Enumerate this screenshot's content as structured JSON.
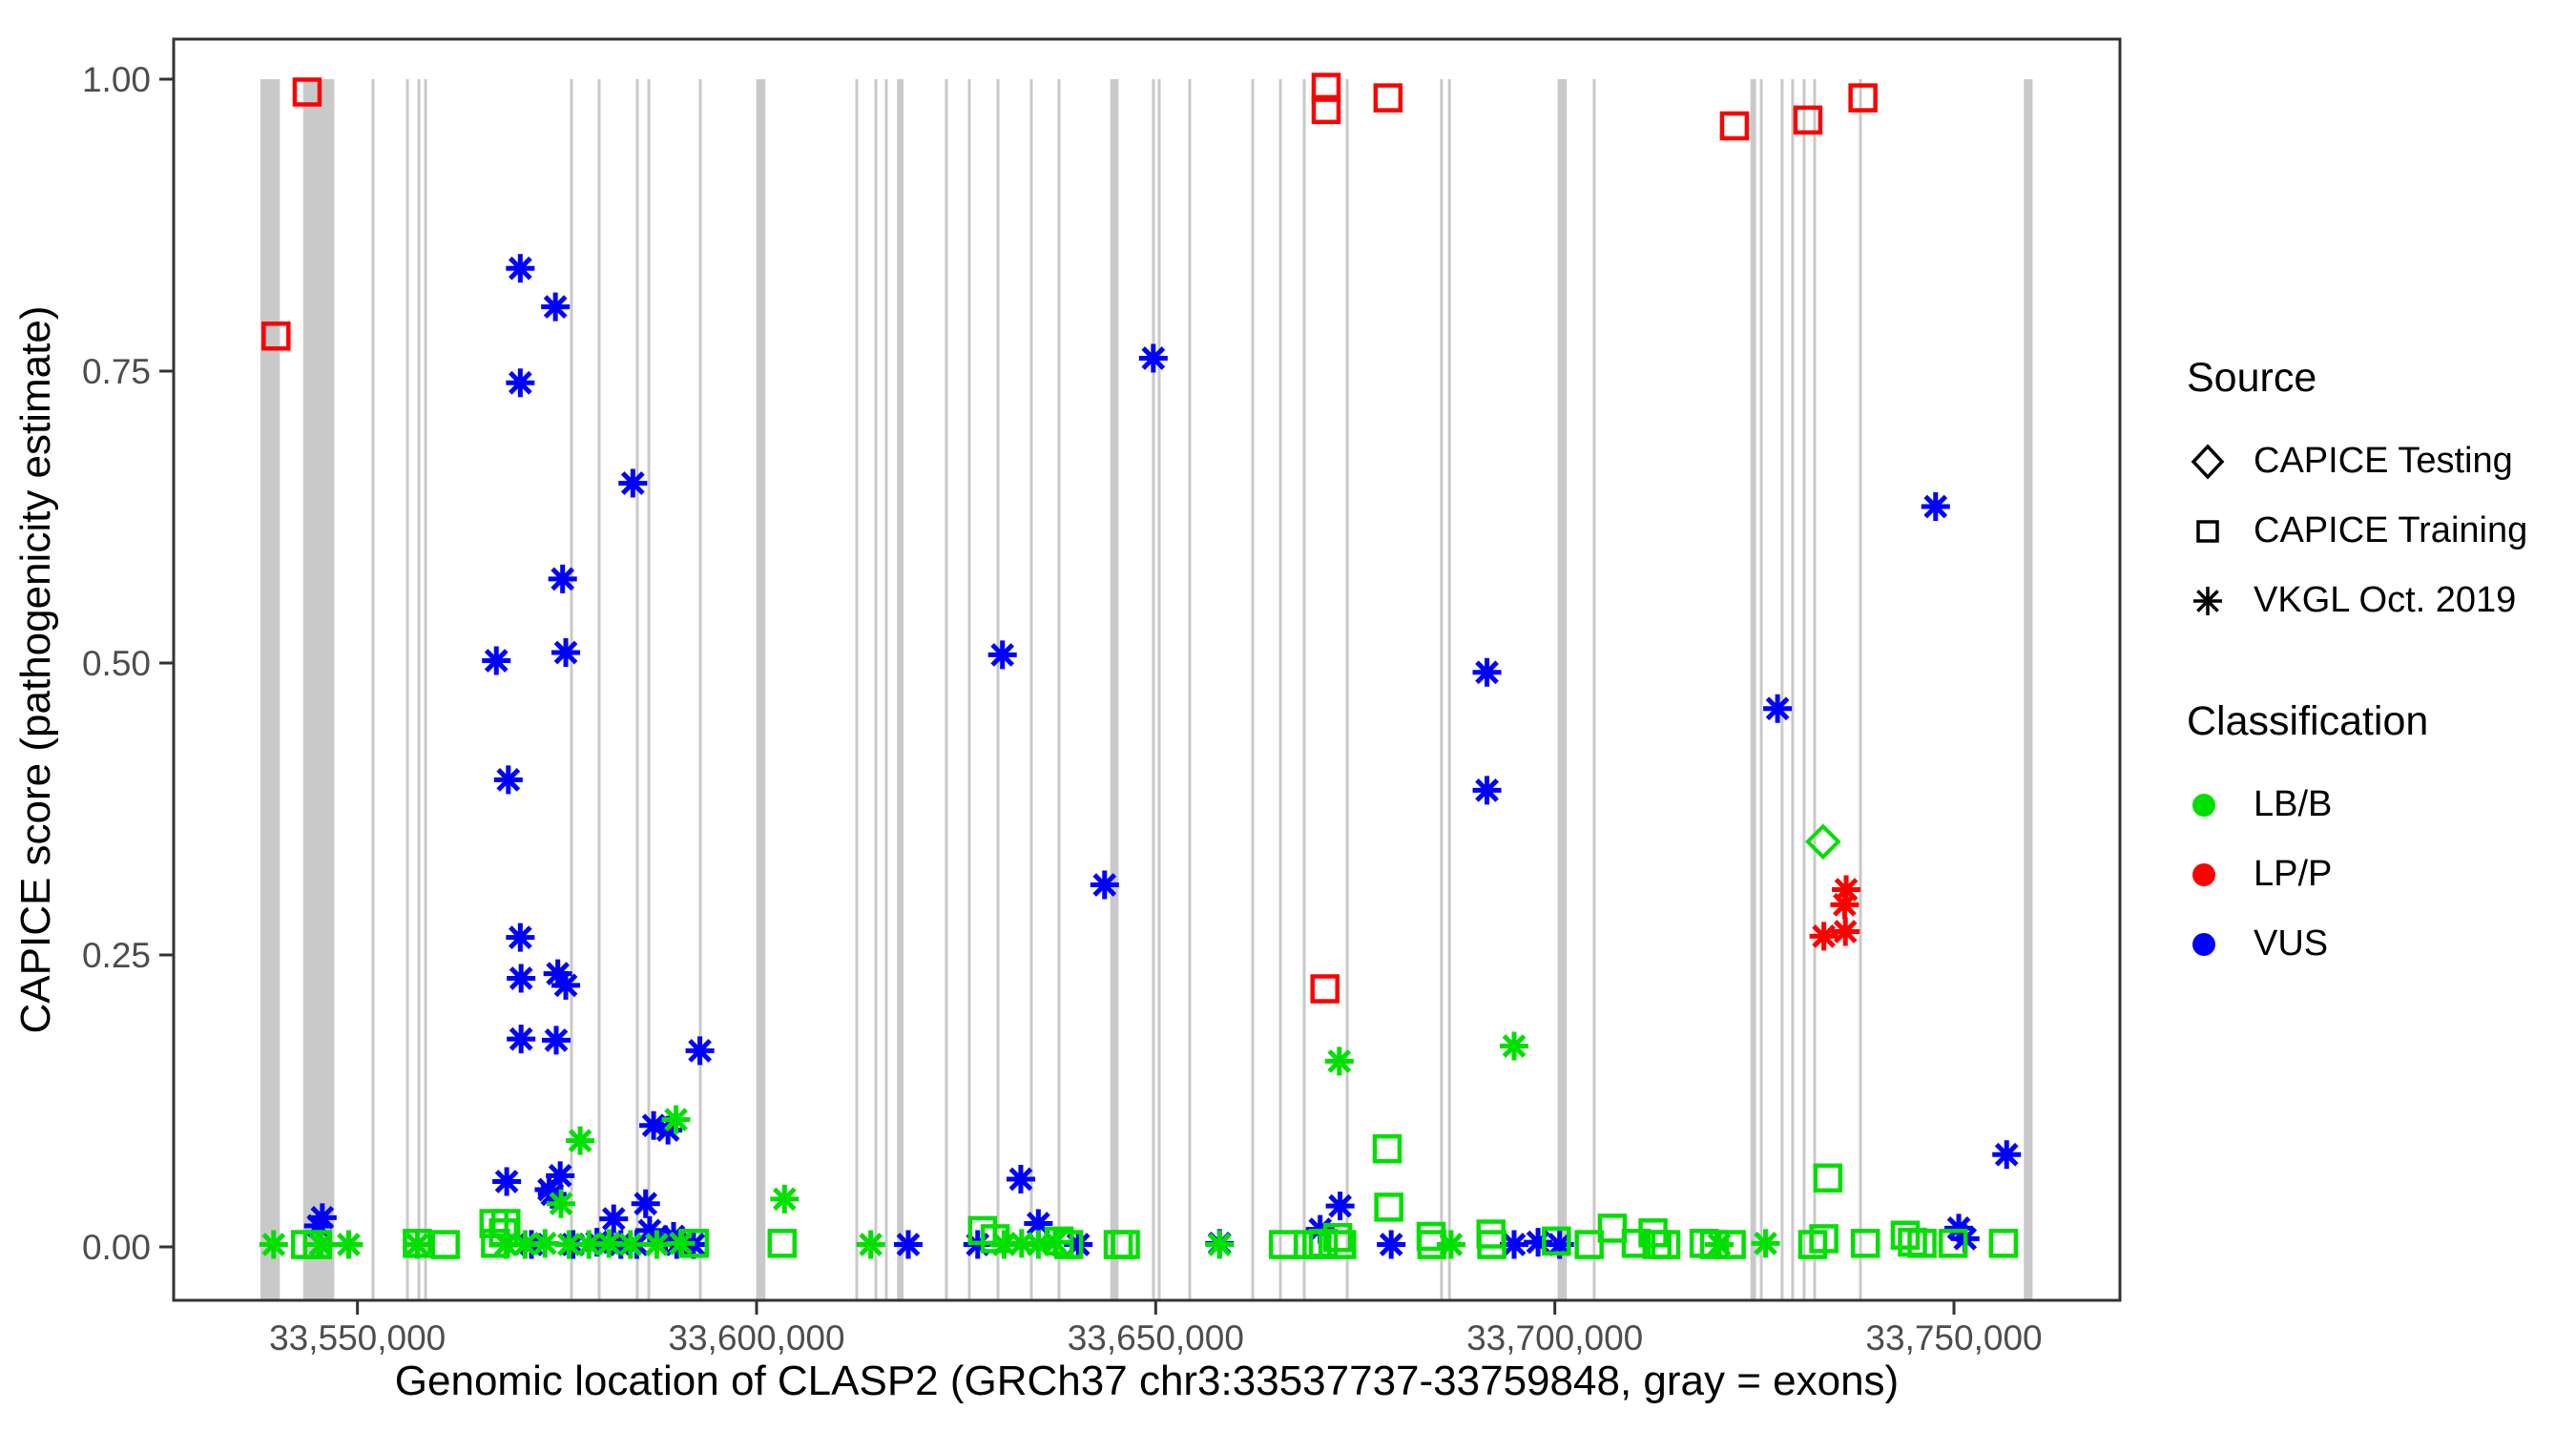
{
  "figure": {
    "x_title": "Genomic location of CLASP2 (GRCh37 chr3:33537737-33759848, gray = exons)",
    "y_title": "CAPICE score (pathogenicity estimate)"
  },
  "legend": {
    "source": {
      "title": "Source",
      "items": [
        {
          "symbol": "diamond",
          "label": "CAPICE Testing"
        },
        {
          "symbol": "square",
          "label": "CAPICE Training"
        },
        {
          "symbol": "asterisk",
          "label": "VKGL Oct. 2019"
        }
      ]
    },
    "classification": {
      "title": "Classification",
      "items": [
        {
          "color": "#00e000",
          "label": "LB/B"
        },
        {
          "color": "#ff0000",
          "label": "LP/P"
        },
        {
          "color": "#0000ff",
          "label": "VUS"
        }
      ]
    }
  },
  "chart_data": {
    "type": "scatter",
    "title": "",
    "xlabel": "Genomic location of CLASP2 (GRCh37 chr3:33537737-33759848, gray = exons)",
    "ylabel": "CAPICE score (pathogenicity estimate)",
    "xlim": [
      33526900,
      33770800
    ],
    "ylim": [
      -0.046,
      1.035
    ],
    "x_ticks": [
      {
        "value": 33550000,
        "label": "33,550,000"
      },
      {
        "value": 33600000,
        "label": "33,600,000"
      },
      {
        "value": 33650000,
        "label": "33,650,000"
      },
      {
        "value": 33700000,
        "label": "33,700,000"
      },
      {
        "value": 33750000,
        "label": "33,750,000"
      }
    ],
    "y_ticks": [
      {
        "value": 0.0,
        "label": "0.00"
      },
      {
        "value": 0.25,
        "label": "0.25"
      },
      {
        "value": 0.5,
        "label": "0.50"
      },
      {
        "value": 0.75,
        "label": "0.75"
      },
      {
        "value": 1.0,
        "label": "1.00"
      }
    ],
    "grid": false,
    "legend_position": "right",
    "colors": {
      "LB/B": "#00e000",
      "LP/P": "#ff0000",
      "VUS": "#0000ff",
      "exon": "#c9c9c9",
      "axis": "#333333",
      "tick_text": "#4d4d4d"
    },
    "exons_wide": [
      [
        33537850,
        33540280
      ],
      [
        33543200,
        33547100
      ],
      [
        33599950,
        33601100
      ],
      [
        33617600,
        33618400
      ],
      [
        33644300,
        33645350
      ],
      [
        33700350,
        33701500
      ],
      [
        33724500,
        33725200
      ],
      [
        33758750,
        33759848
      ]
    ],
    "exons_thin": [
      33551950,
      33556260,
      33557700,
      33558530,
      33576810,
      33580280,
      33585060,
      33586500,
      33592950,
      33612550,
      33614940,
      33616250,
      33623780,
      33626650,
      33630240,
      33634420,
      33637890,
      33649720,
      33650440,
      33654260,
      33662150,
      33665620,
      33668610,
      33673990,
      33685800,
      33686800,
      33704930,
      33725860,
      33728470,
      33729790,
      33731230,
      33732550,
      33738290
    ],
    "series": [
      {
        "name": "VUS / VKGL Oct. 2019",
        "classification": "VUS",
        "source": "vkgl",
        "points": [
          [
            33570400,
            0.838
          ],
          [
            33574800,
            0.805
          ],
          [
            33570400,
            0.74
          ],
          [
            33584500,
            0.654
          ],
          [
            33575700,
            0.572
          ],
          [
            33576100,
            0.509
          ],
          [
            33567400,
            0.502
          ],
          [
            33568900,
            0.4
          ],
          [
            33570400,
            0.265
          ],
          [
            33570500,
            0.23
          ],
          [
            33575100,
            0.234
          ],
          [
            33576100,
            0.224
          ],
          [
            33570500,
            0.178
          ],
          [
            33574900,
            0.177
          ],
          [
            33592900,
            0.168
          ],
          [
            33587100,
            0.104
          ],
          [
            33588900,
            0.1
          ],
          [
            33568700,
            0.056
          ],
          [
            33575400,
            0.061
          ],
          [
            33574000,
            0.049
          ],
          [
            33574400,
            0.045
          ],
          [
            33582100,
            0.024
          ],
          [
            33586100,
            0.037
          ],
          [
            33586600,
            0.014
          ],
          [
            33588600,
            0.006
          ],
          [
            33589600,
            0.009
          ],
          [
            33545600,
            0.025
          ],
          [
            33545100,
            0.018
          ],
          [
            33545400,
            0.002
          ],
          [
            33571800,
            0.002
          ],
          [
            33577000,
            0.002
          ],
          [
            33580000,
            0.004
          ],
          [
            33583000,
            0.002
          ],
          [
            33585000,
            0.002
          ],
          [
            33590000,
            0.002
          ],
          [
            33592100,
            0.002
          ],
          [
            33649700,
            0.761
          ],
          [
            33630800,
            0.507
          ],
          [
            33643600,
            0.31
          ],
          [
            33633100,
            0.058
          ],
          [
            33635300,
            0.02
          ],
          [
            33619000,
            0.002
          ],
          [
            33627700,
            0.002
          ],
          [
            33640300,
            0.002
          ],
          [
            33658000,
            0.003
          ],
          [
            33670600,
            0.015
          ],
          [
            33673100,
            0.035
          ],
          [
            33679500,
            0.002
          ],
          [
            33694900,
            0.002
          ],
          [
            33697900,
            0.004
          ],
          [
            33700600,
            0.002
          ],
          [
            33691500,
            0.492
          ],
          [
            33691500,
            0.391
          ],
          [
            33727900,
            0.461
          ],
          [
            33747700,
            0.634
          ],
          [
            33756600,
            0.079
          ],
          [
            33750600,
            0.016
          ],
          [
            33751400,
            0.007
          ]
        ]
      },
      {
        "name": "LP/P / CAPICE Training",
        "classification": "LP/P",
        "source": "training",
        "points": [
          [
            33543700,
            0.989
          ],
          [
            33539800,
            0.78
          ],
          [
            33671350,
            0.993
          ],
          [
            33671350,
            0.974
          ],
          [
            33679100,
            0.984
          ],
          [
            33671200,
            0.221
          ],
          [
            33722500,
            0.96
          ],
          [
            33731700,
            0.965
          ],
          [
            33738600,
            0.984
          ]
        ]
      },
      {
        "name": "LP/P / VKGL Oct. 2019",
        "classification": "LP/P",
        "source": "vkgl",
        "points": [
          [
            33736500,
            0.306
          ],
          [
            33736300,
            0.293
          ],
          [
            33736400,
            0.27
          ],
          [
            33733700,
            0.266
          ]
        ]
      },
      {
        "name": "LB/B / CAPICE Testing",
        "classification": "LB/B",
        "source": "testing",
        "points": [
          [
            33733600,
            0.347
          ]
        ]
      },
      {
        "name": "LB/B / VKGL Oct. 2019",
        "classification": "LB/B",
        "source": "vkgl",
        "points": [
          [
            33539500,
            0.002
          ],
          [
            33545400,
            0.002
          ],
          [
            33548900,
            0.002
          ],
          [
            33557500,
            0.002
          ],
          [
            33568600,
            0.002
          ],
          [
            33614300,
            0.002
          ],
          [
            33577900,
            0.091
          ],
          [
            33575500,
            0.037
          ],
          [
            33603500,
            0.041
          ],
          [
            33589900,
            0.109
          ],
          [
            33673000,
            0.159
          ],
          [
            33694900,
            0.172
          ],
          [
            33687000,
            0.002
          ],
          [
            33720600,
            0.002
          ],
          [
            33726400,
            0.003
          ],
          [
            33631000,
            0.002
          ],
          [
            33633200,
            0.003
          ],
          [
            33635300,
            0.002
          ],
          [
            33637400,
            0.004
          ],
          [
            33658000,
            0.002
          ],
          [
            33571000,
            0.002
          ],
          [
            33573500,
            0.003
          ],
          [
            33576500,
            0.002
          ],
          [
            33579000,
            0.002
          ],
          [
            33581500,
            0.003
          ],
          [
            33584200,
            0.002
          ],
          [
            33587500,
            0.002
          ],
          [
            33590500,
            0.003
          ]
        ]
      },
      {
        "name": "LB/B / CAPICE Training",
        "classification": "LB/B",
        "source": "training",
        "points": [
          [
            33567100,
            0.02
          ],
          [
            33568600,
            0.02
          ],
          [
            33567300,
            0.003
          ],
          [
            33568300,
            0.012
          ],
          [
            33543500,
            0.002
          ],
          [
            33545000,
            0.002
          ],
          [
            33557500,
            0.003
          ],
          [
            33561000,
            0.002
          ],
          [
            33592200,
            0.003
          ],
          [
            33603200,
            0.003
          ],
          [
            33628300,
            0.014
          ],
          [
            33629900,
            0.007
          ],
          [
            33637900,
            0.005
          ],
          [
            33639100,
            0.002
          ],
          [
            33645300,
            0.002
          ],
          [
            33646200,
            0.002
          ],
          [
            33666000,
            0.002
          ],
          [
            33669100,
            0.002
          ],
          [
            33670200,
            0.002
          ],
          [
            33671000,
            0.003
          ],
          [
            33672800,
            0.008
          ],
          [
            33673300,
            0.002
          ],
          [
            33679000,
            0.084
          ],
          [
            33679200,
            0.034
          ],
          [
            33684500,
            0.009
          ],
          [
            33684600,
            0.002
          ],
          [
            33692000,
            0.011
          ],
          [
            33692100,
            0.002
          ],
          [
            33700200,
            0.005
          ],
          [
            33704300,
            0.002
          ],
          [
            33707200,
            0.016
          ],
          [
            33710200,
            0.003
          ],
          [
            33712300,
            0.012
          ],
          [
            33712800,
            0.002
          ],
          [
            33713900,
            0.002
          ],
          [
            33718700,
            0.003
          ],
          [
            33720000,
            0.002
          ],
          [
            33722100,
            0.002
          ],
          [
            33732300,
            0.002
          ],
          [
            33733700,
            0.007
          ],
          [
            33734200,
            0.059
          ],
          [
            33738900,
            0.003
          ],
          [
            33743900,
            0.01
          ],
          [
            33744800,
            0.004
          ],
          [
            33746000,
            0.003
          ],
          [
            33749900,
            0.003
          ],
          [
            33756200,
            0.003
          ]
        ]
      }
    ]
  }
}
